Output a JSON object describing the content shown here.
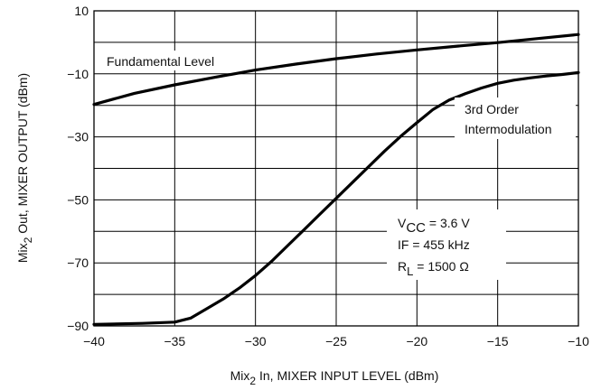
{
  "chart_data": {
    "type": "line",
    "xlabel_parts": [
      "Mix",
      "2",
      " In, MIXER INPUT LEVEL (dBm)"
    ],
    "ylabel_parts": [
      "Mix",
      "2",
      " Out, MIXER OUTPUT (dBm)"
    ],
    "xlim": [
      -40,
      -10
    ],
    "ylim": [
      -90,
      10
    ],
    "xticks": [
      -40,
      -35,
      -30,
      -25,
      -20,
      -15,
      -10
    ],
    "xtick_labels": [
      "−40",
      "−35",
      "−30",
      "−25",
      "−20",
      "−15",
      "−10"
    ],
    "yticks": [
      -90,
      -70,
      -50,
      -30,
      -10,
      10
    ],
    "ytick_labels": [
      "−90",
      "−70",
      "−50",
      "−30",
      "−10",
      "10"
    ],
    "grid": true,
    "grid_y_step": 10,
    "series": [
      {
        "name": "Fundamental Level",
        "x": [
          -40,
          -37.5,
          -35,
          -32.5,
          -30,
          -27.5,
          -25,
          -22.5,
          -20,
          -17.5,
          -15,
          -12.5,
          -10
        ],
        "y": [
          -19.7,
          -16.2,
          -13.5,
          -11.1,
          -8.8,
          -6.9,
          -5.2,
          -3.7,
          -2.4,
          -1.2,
          -0.1,
          1.2,
          2.5
        ]
      },
      {
        "name": "3rd Order Intermodulation",
        "x": [
          -40,
          -37,
          -35,
          -34,
          -33,
          -32,
          -31,
          -30,
          -29,
          -28,
          -27,
          -26,
          -25,
          -24,
          -23,
          -22,
          -21,
          -20,
          -19,
          -18,
          -17,
          -16,
          -15,
          -14,
          -13,
          -12,
          -11,
          -10
        ],
        "y": [
          -89.5,
          -89.2,
          -88.8,
          -87.5,
          -84.5,
          -81.5,
          -78,
          -74,
          -69.5,
          -64.5,
          -59.5,
          -54.5,
          -49.5,
          -44.5,
          -39.5,
          -34.5,
          -29.8,
          -25.5,
          -21.3,
          -18.3,
          -16.3,
          -14.5,
          -13,
          -12,
          -11.3,
          -10.7,
          -10.2,
          -9.6
        ]
      }
    ],
    "annotations": {
      "fundamental_label": "Fundamental Level",
      "im3_label_line1": "3rd Order",
      "im3_label_line2": "Intermodulation",
      "cond_vcc_prefix": "V",
      "cond_vcc_sub": "CC",
      "cond_vcc_value": " = 3.6 V",
      "cond_if": "IF = 455 kHz",
      "cond_rl_prefix": "R",
      "cond_rl_sub": "L",
      "cond_rl_value": " = 1500 Ω"
    }
  }
}
